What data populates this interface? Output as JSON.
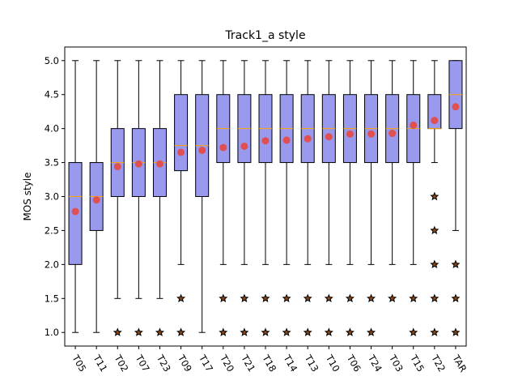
{
  "chart_data": {
    "type": "boxplot",
    "title": "Track1_a style",
    "xlabel": "",
    "ylabel": "MOS style",
    "ylim": [
      0.8,
      5.2
    ],
    "yticks": [
      "1.0",
      "1.5",
      "2.0",
      "2.5",
      "3.0",
      "3.5",
      "4.0",
      "4.5",
      "5.0"
    ],
    "grid": false,
    "colors": {
      "box_fill": "#9999ee",
      "median": "#ffa500",
      "mean": "#e05050",
      "outlier_edge": "#000000",
      "outlier_fill": "#8b4513"
    },
    "categories": [
      "T05",
      "T11",
      "T02",
      "T07",
      "T23",
      "T09",
      "T17",
      "T20",
      "T21",
      "T18",
      "T14",
      "T13",
      "T10",
      "T06",
      "T24",
      "T03",
      "T15",
      "T22",
      "TAR"
    ],
    "boxes": [
      {
        "name": "T05",
        "whislo": 1.0,
        "q1": 2.0,
        "med": 3.0,
        "q3": 3.5,
        "whishi": 5.0,
        "mean": 2.78,
        "fliers": []
      },
      {
        "name": "T11",
        "whislo": 1.0,
        "q1": 2.5,
        "med": 3.0,
        "q3": 3.5,
        "whishi": 5.0,
        "mean": 2.95,
        "fliers": []
      },
      {
        "name": "T02",
        "whislo": 1.5,
        "q1": 3.0,
        "med": 3.5,
        "q3": 4.0,
        "whishi": 5.0,
        "mean": 3.44,
        "fliers": [
          1.0
        ]
      },
      {
        "name": "T07",
        "whislo": 1.5,
        "q1": 3.0,
        "med": 3.5,
        "q3": 4.0,
        "whishi": 5.0,
        "mean": 3.48,
        "fliers": [
          1.0
        ]
      },
      {
        "name": "T23",
        "whislo": 1.5,
        "q1": 3.0,
        "med": 3.5,
        "q3": 4.0,
        "whishi": 5.0,
        "mean": 3.48,
        "fliers": [
          1.0
        ]
      },
      {
        "name": "T09",
        "whislo": 2.0,
        "q1": 3.38,
        "med": 3.75,
        "q3": 4.5,
        "whishi": 5.0,
        "mean": 3.65,
        "fliers": [
          1.0,
          1.5
        ]
      },
      {
        "name": "T17",
        "whislo": 1.0,
        "q1": 3.0,
        "med": 3.75,
        "q3": 4.5,
        "whishi": 5.0,
        "mean": 3.68,
        "fliers": []
      },
      {
        "name": "T20",
        "whislo": 2.0,
        "q1": 3.5,
        "med": 4.0,
        "q3": 4.5,
        "whishi": 5.0,
        "mean": 3.72,
        "fliers": [
          1.0,
          1.5
        ]
      },
      {
        "name": "T21",
        "whislo": 2.0,
        "q1": 3.5,
        "med": 4.0,
        "q3": 4.5,
        "whishi": 5.0,
        "mean": 3.74,
        "fliers": [
          1.0,
          1.5
        ]
      },
      {
        "name": "T18",
        "whislo": 2.0,
        "q1": 3.5,
        "med": 4.0,
        "q3": 4.5,
        "whishi": 5.0,
        "mean": 3.82,
        "fliers": [
          1.0,
          1.5
        ]
      },
      {
        "name": "T14",
        "whislo": 2.0,
        "q1": 3.5,
        "med": 4.0,
        "q3": 4.5,
        "whishi": 5.0,
        "mean": 3.83,
        "fliers": [
          1.0,
          1.5
        ]
      },
      {
        "name": "T13",
        "whislo": 2.0,
        "q1": 3.5,
        "med": 4.0,
        "q3": 4.5,
        "whishi": 5.0,
        "mean": 3.85,
        "fliers": [
          1.0,
          1.5
        ]
      },
      {
        "name": "T10",
        "whislo": 2.0,
        "q1": 3.5,
        "med": 4.0,
        "q3": 4.5,
        "whishi": 5.0,
        "mean": 3.88,
        "fliers": [
          1.0,
          1.5
        ]
      },
      {
        "name": "T06",
        "whislo": 2.0,
        "q1": 3.5,
        "med": 4.0,
        "q3": 4.5,
        "whishi": 5.0,
        "mean": 3.92,
        "fliers": [
          1.0,
          1.5
        ]
      },
      {
        "name": "T24",
        "whislo": 2.0,
        "q1": 3.5,
        "med": 4.0,
        "q3": 4.5,
        "whishi": 5.0,
        "mean": 3.92,
        "fliers": [
          1.0,
          1.5
        ]
      },
      {
        "name": "T03",
        "whislo": 2.0,
        "q1": 3.5,
        "med": 4.0,
        "q3": 4.5,
        "whishi": 5.0,
        "mean": 3.93,
        "fliers": [
          1.5
        ]
      },
      {
        "name": "T15",
        "whislo": 2.0,
        "q1": 3.5,
        "med": 4.0,
        "q3": 4.5,
        "whishi": 5.0,
        "mean": 4.05,
        "fliers": [
          1.0,
          1.5
        ]
      },
      {
        "name": "T22",
        "whislo": 3.5,
        "q1": 4.0,
        "med": 4.0,
        "q3": 4.5,
        "whishi": 5.0,
        "mean": 4.12,
        "fliers": [
          1.0,
          1.5,
          2.0,
          2.5,
          3.0
        ]
      },
      {
        "name": "TAR",
        "whislo": 2.5,
        "q1": 4.0,
        "med": 4.5,
        "q3": 5.0,
        "whishi": 5.0,
        "mean": 4.32,
        "fliers": [
          1.0,
          1.5,
          2.0
        ]
      }
    ]
  }
}
